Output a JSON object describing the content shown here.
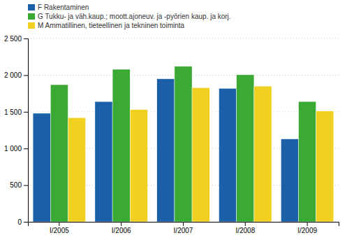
{
  "chart_data": {
    "type": "bar",
    "categories": [
      "I/2005",
      "I/2006",
      "I/2007",
      "I/2008",
      "I/2009"
    ],
    "series": [
      {
        "name": "F Rakentaminen",
        "color": "#1a5fa8",
        "values": [
          1480,
          1640,
          1950,
          1820,
          1130
        ]
      },
      {
        "name": "G Tukku- ja väh.kaup.; moott.ajoneuv. ja -pyörien kaup. ja korj.",
        "color": "#3aaa35",
        "values": [
          1870,
          2080,
          2120,
          2005,
          1640
        ]
      },
      {
        "name": "M Ammatillinen, tieteellinen ja tekninen toiminta",
        "color": "#f0d020",
        "values": [
          1420,
          1530,
          1830,
          1850,
          1510
        ]
      }
    ],
    "ylim": [
      0,
      2500
    ],
    "yticks": [
      0,
      500,
      {
        "value": 1000,
        "label": "1 000"
      },
      {
        "value": 1500,
        "label": "1 500"
      },
      {
        "value": 2000,
        "label": "2 000"
      },
      {
        "value": 2500,
        "label": "2 500"
      }
    ],
    "grid": true,
    "legend": "upper left"
  }
}
